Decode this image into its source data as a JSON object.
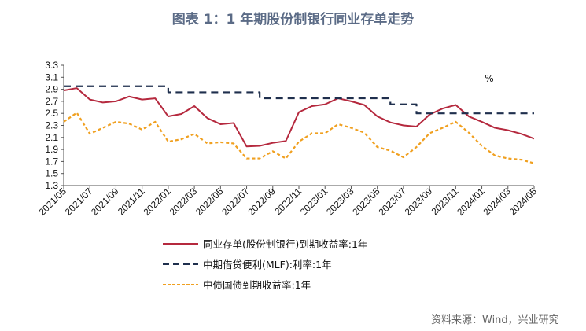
{
  "title": "图表 1：1 年期股份制银行同业存单走势",
  "source": "资料来源：Wind，兴业研究",
  "chart_data": {
    "type": "line",
    "title": "图表 1：1 年期股份制银行同业存单走势",
    "unit": "%",
    "ylim": [
      1.3,
      3.3
    ],
    "yticks": [
      "3.3",
      "3.1",
      "2.9",
      "2.7",
      "2.5",
      "2.3",
      "2.1",
      "1.9",
      "1.7",
      "1.5",
      "1.3"
    ],
    "xticks": [
      "2021/05",
      "2021/07",
      "2021/09",
      "2021/11",
      "2022/01",
      "2022/03",
      "2022/05",
      "2022/07",
      "2022/09",
      "2022/11",
      "2023/01",
      "2023/03",
      "2023/05",
      "2023/07",
      "2023/09",
      "2023/11",
      "2024/01",
      "2024/03",
      "2024/05"
    ],
    "x": [
      "2021/05",
      "2021/06",
      "2021/07",
      "2021/08",
      "2021/09",
      "2021/10",
      "2021/11",
      "2021/12",
      "2022/01",
      "2022/02",
      "2022/03",
      "2022/04",
      "2022/05",
      "2022/06",
      "2022/07",
      "2022/08",
      "2022/09",
      "2022/10",
      "2022/11",
      "2022/12",
      "2023/01",
      "2023/02",
      "2023/03",
      "2023/04",
      "2023/05",
      "2023/06",
      "2023/07",
      "2023/08",
      "2023/09",
      "2023/10",
      "2023/11",
      "2023/12",
      "2024/01",
      "2024/02",
      "2024/03",
      "2024/04",
      "2024/05"
    ],
    "grid": false,
    "legend_position": "bottom",
    "series": [
      {
        "name": "同业存单(股份制银行)到期收益率:1年",
        "color": "#b5293e",
        "style": "solid",
        "values": [
          2.88,
          2.92,
          2.73,
          2.68,
          2.7,
          2.78,
          2.73,
          2.75,
          2.45,
          2.49,
          2.62,
          2.42,
          2.32,
          2.34,
          1.95,
          1.96,
          2.01,
          2.04,
          2.52,
          2.62,
          2.65,
          2.75,
          2.7,
          2.64,
          2.45,
          2.35,
          2.3,
          2.28,
          2.48,
          2.58,
          2.64,
          2.45,
          2.36,
          2.26,
          2.22,
          2.16,
          2.08
        ]
      },
      {
        "name": "中期借贷便利(MLF):利率:1年",
        "color": "#1f2f4d",
        "style": "dashed-step",
        "values": [
          2.95,
          2.95,
          2.95,
          2.95,
          2.95,
          2.95,
          2.95,
          2.95,
          2.85,
          2.85,
          2.85,
          2.85,
          2.85,
          2.85,
          2.85,
          2.75,
          2.75,
          2.75,
          2.75,
          2.75,
          2.75,
          2.75,
          2.75,
          2.75,
          2.75,
          2.65,
          2.65,
          2.5,
          2.5,
          2.5,
          2.5,
          2.5,
          2.5,
          2.5,
          2.5,
          2.5,
          2.5
        ]
      },
      {
        "name": "中债国债到期收益率:1年",
        "color": "#f0a020",
        "style": "dotted",
        "values": [
          2.36,
          2.51,
          2.16,
          2.26,
          2.36,
          2.33,
          2.23,
          2.36,
          2.03,
          2.07,
          2.16,
          2.0,
          2.02,
          2.0,
          1.75,
          1.75,
          1.87,
          1.75,
          2.03,
          2.17,
          2.17,
          2.32,
          2.26,
          2.18,
          1.94,
          1.88,
          1.77,
          1.94,
          2.17,
          2.26,
          2.36,
          2.18,
          1.96,
          1.8,
          1.75,
          1.73,
          1.67
        ]
      }
    ]
  }
}
